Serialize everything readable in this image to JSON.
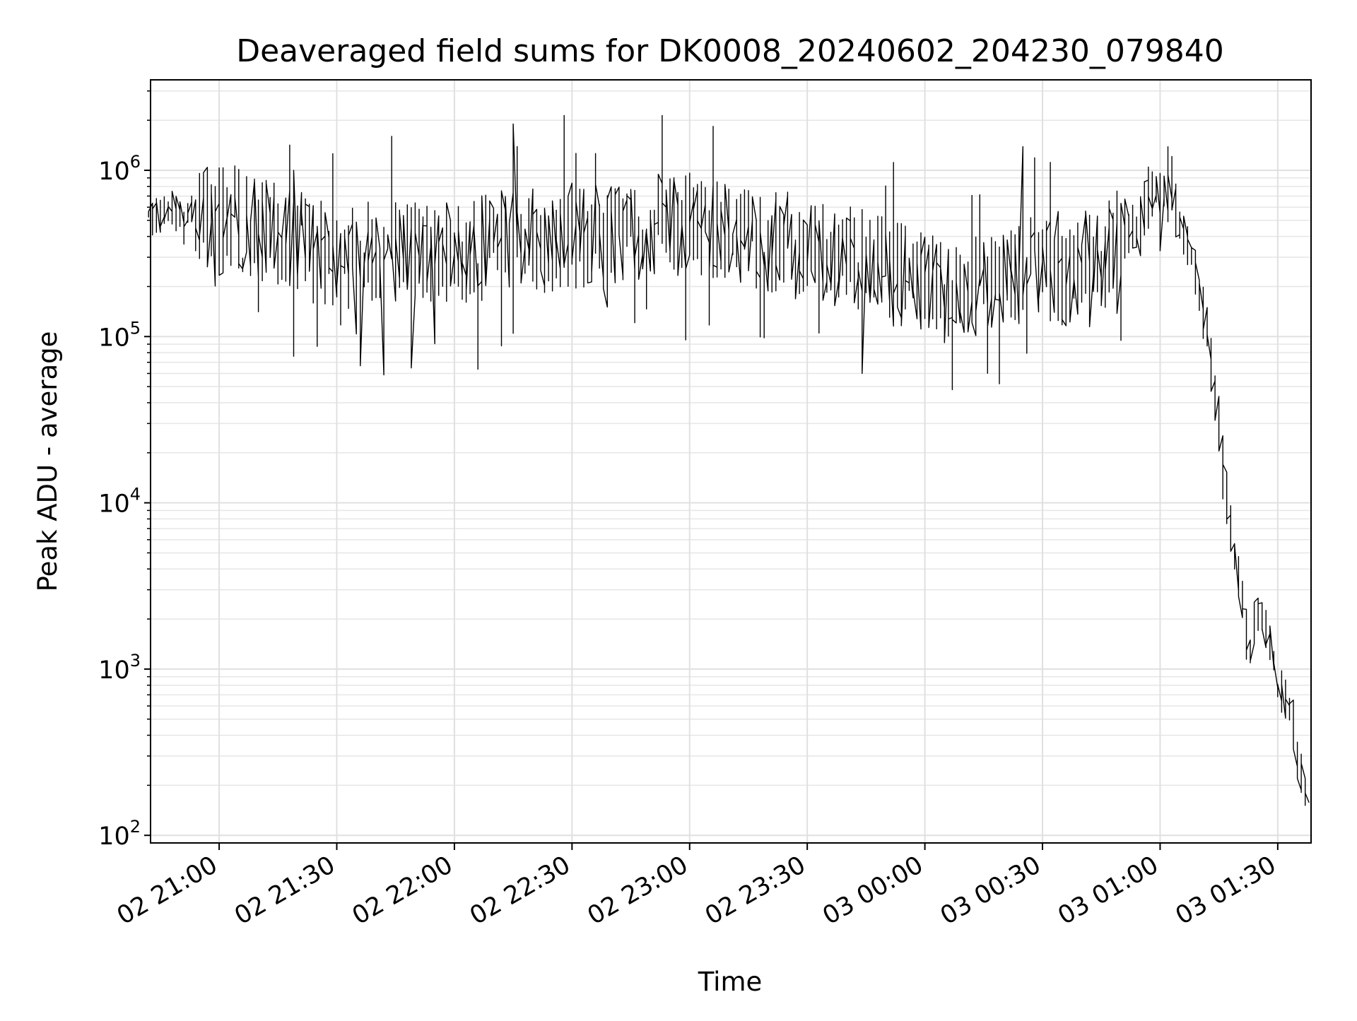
{
  "chart_data": {
    "type": "line",
    "title": "Deaveraged field sums for DK0008_20240602_204230_079840",
    "xlabel": "Time",
    "ylabel": "Peak ADU - average",
    "yscale": "log",
    "xlim": [
      "2024-06-02 20:42:30",
      "2024-06-03 01:38:30"
    ],
    "ylim": [
      90,
      3500000
    ],
    "grid": true,
    "x_ticks": [
      {
        "value": "2024-06-02 21:00",
        "label": "02 21:00"
      },
      {
        "value": "2024-06-02 21:30",
        "label": "02 21:30"
      },
      {
        "value": "2024-06-02 22:00",
        "label": "02 22:00"
      },
      {
        "value": "2024-06-02 22:30",
        "label": "02 22:30"
      },
      {
        "value": "2024-06-02 23:00",
        "label": "02 23:00"
      },
      {
        "value": "2024-06-02 23:30",
        "label": "02 23:30"
      },
      {
        "value": "2024-06-03 00:00",
        "label": "03 00:00"
      },
      {
        "value": "2024-06-03 00:30",
        "label": "03 00:30"
      },
      {
        "value": "2024-06-03 01:00",
        "label": "03 01:00"
      },
      {
        "value": "2024-06-03 01:30",
        "label": "03 01:30"
      }
    ],
    "y_ticks": [
      {
        "value": 100,
        "base": "10",
        "exp": "2"
      },
      {
        "value": 1000,
        "base": "10",
        "exp": "3"
      },
      {
        "value": 10000,
        "base": "10",
        "exp": "4"
      },
      {
        "value": 100000,
        "base": "10",
        "exp": "5"
      },
      {
        "value": 1000000,
        "base": "10",
        "exp": "6"
      }
    ],
    "series": [
      {
        "color": "#000000",
        "x": [
          "2024-06-02 20:42",
          "2024-06-02 20:45",
          "2024-06-02 20:50",
          "2024-06-02 20:55",
          "2024-06-02 21:00",
          "2024-06-02 21:05",
          "2024-06-02 21:10",
          "2024-06-02 21:15",
          "2024-06-02 21:20",
          "2024-06-02 21:25",
          "2024-06-02 21:30",
          "2024-06-02 21:35",
          "2024-06-02 21:40",
          "2024-06-02 21:45",
          "2024-06-02 21:50",
          "2024-06-02 21:55",
          "2024-06-02 22:00",
          "2024-06-02 22:05",
          "2024-06-02 22:10",
          "2024-06-02 22:15",
          "2024-06-02 22:20",
          "2024-06-02 22:25",
          "2024-06-02 22:30",
          "2024-06-02 22:35",
          "2024-06-02 22:40",
          "2024-06-02 22:45",
          "2024-06-02 22:50",
          "2024-06-02 22:55",
          "2024-06-02 23:00",
          "2024-06-02 23:05",
          "2024-06-02 23:10",
          "2024-06-02 23:15",
          "2024-06-02 23:20",
          "2024-06-02 23:25",
          "2024-06-02 23:30",
          "2024-06-02 23:35",
          "2024-06-02 23:40",
          "2024-06-02 23:45",
          "2024-06-02 23:50",
          "2024-06-02 23:55",
          "2024-06-03 00:00",
          "2024-06-03 00:05",
          "2024-06-03 00:10",
          "2024-06-03 00:15",
          "2024-06-03 00:20",
          "2024-06-03 00:25",
          "2024-06-03 00:30",
          "2024-06-03 00:35",
          "2024-06-03 00:40",
          "2024-06-03 00:45",
          "2024-06-03 00:50",
          "2024-06-03 00:55",
          "2024-06-03 01:00",
          "2024-06-03 01:04",
          "2024-06-03 01:07",
          "2024-06-03 01:10",
          "2024-06-03 01:12",
          "2024-06-03 01:15",
          "2024-06-03 01:17",
          "2024-06-03 01:20",
          "2024-06-03 01:23",
          "2024-06-03 01:25",
          "2024-06-03 01:28",
          "2024-06-03 01:31",
          "2024-06-03 01:34",
          "2024-06-03 01:36",
          "2024-06-03 01:38"
        ],
        "y": [
          500000,
          550000,
          600000,
          520000,
          500000,
          520000,
          460000,
          400000,
          380000,
          330000,
          300000,
          320000,
          330000,
          340000,
          350000,
          340000,
          300000,
          330000,
          350000,
          380000,
          370000,
          390000,
          400000,
          420000,
          410000,
          450000,
          430000,
          480000,
          460000,
          470000,
          450000,
          420000,
          390000,
          370000,
          340000,
          330000,
          300000,
          280000,
          250000,
          230000,
          200000,
          190000,
          180000,
          200000,
          220000,
          250000,
          250000,
          230000,
          260000,
          280000,
          350000,
          500000,
          800000,
          650000,
          400000,
          200000,
          120000,
          40000,
          12000,
          4000,
          1200,
          2000,
          1800,
          800,
          500,
          250,
          180
        ]
      }
    ]
  }
}
